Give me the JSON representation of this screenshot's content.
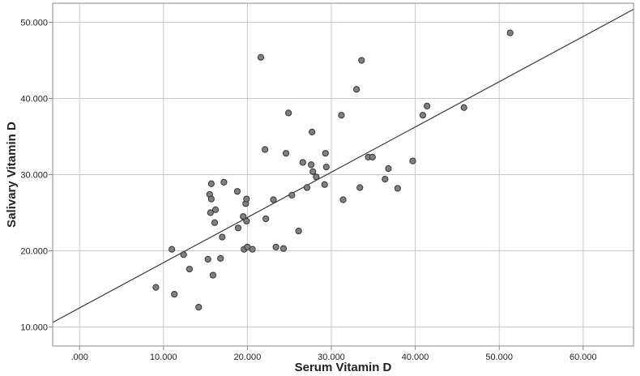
{
  "chart_data": {
    "type": "scatter",
    "title": "",
    "xlabel": "Serum Vitamin D",
    "ylabel": "Salivary Vitamin D",
    "xlim": [
      -3.2,
      66.0
    ],
    "ylim": [
      7.5,
      52.5
    ],
    "x_ticks": [
      {
        "value": 0,
        "label": ".000"
      },
      {
        "value": 10,
        "label": "10.000"
      },
      {
        "value": 20,
        "label": "20.000"
      },
      {
        "value": 30,
        "label": "30.000"
      },
      {
        "value": 40,
        "label": "40.000"
      },
      {
        "value": 50,
        "label": "50.000"
      },
      {
        "value": 60,
        "label": "60.000"
      }
    ],
    "y_ticks": [
      {
        "value": 10,
        "label": "10.000"
      },
      {
        "value": 20,
        "label": "20.000"
      },
      {
        "value": 30,
        "label": "30.000"
      },
      {
        "value": 40,
        "label": "40.000"
      },
      {
        "value": 50,
        "label": "50.000"
      }
    ],
    "grid": true,
    "colors": {
      "marker_fill": "#808080",
      "marker_stroke": "#333333",
      "grid": "#c8c8c8",
      "fit_line": "#3a3a3a",
      "frame": "#8a8a8a"
    },
    "fit_line": [
      [
        -3.2,
        10.6
      ],
      [
        66.0,
        51.7
      ]
    ],
    "points": [
      [
        9.1,
        15.2
      ],
      [
        11.0,
        20.2
      ],
      [
        11.3,
        14.3
      ],
      [
        12.4,
        19.5
      ],
      [
        13.1,
        17.6
      ],
      [
        14.2,
        12.6
      ],
      [
        15.3,
        18.9
      ],
      [
        15.5,
        27.4
      ],
      [
        15.6,
        25.0
      ],
      [
        15.7,
        28.8
      ],
      [
        15.7,
        26.8
      ],
      [
        15.9,
        16.8
      ],
      [
        16.1,
        23.7
      ],
      [
        16.2,
        25.4
      ],
      [
        16.8,
        19.0
      ],
      [
        17.0,
        21.8
      ],
      [
        17.2,
        29.0
      ],
      [
        18.8,
        27.8
      ],
      [
        18.9,
        23.0
      ],
      [
        19.5,
        24.5
      ],
      [
        19.6,
        20.2
      ],
      [
        19.8,
        26.2
      ],
      [
        19.9,
        26.8
      ],
      [
        19.9,
        23.9
      ],
      [
        20.0,
        20.5
      ],
      [
        20.6,
        20.2
      ],
      [
        21.6,
        45.4
      ],
      [
        22.1,
        33.3
      ],
      [
        22.2,
        24.2
      ],
      [
        23.1,
        26.7
      ],
      [
        23.4,
        20.5
      ],
      [
        24.3,
        20.3
      ],
      [
        24.6,
        32.8
      ],
      [
        24.9,
        38.1
      ],
      [
        25.3,
        27.3
      ],
      [
        26.1,
        22.6
      ],
      [
        26.6,
        31.6
      ],
      [
        27.1,
        28.3
      ],
      [
        27.6,
        31.3
      ],
      [
        27.7,
        35.6
      ],
      [
        27.8,
        30.4
      ],
      [
        28.2,
        29.7
      ],
      [
        29.2,
        28.7
      ],
      [
        29.3,
        32.8
      ],
      [
        29.4,
        31.0
      ],
      [
        31.2,
        37.8
      ],
      [
        31.4,
        26.7
      ],
      [
        33.0,
        41.2
      ],
      [
        33.4,
        28.3
      ],
      [
        33.6,
        45.0
      ],
      [
        34.4,
        32.3
      ],
      [
        34.9,
        32.3
      ],
      [
        36.4,
        29.4
      ],
      [
        36.8,
        30.8
      ],
      [
        37.9,
        28.2
      ],
      [
        39.7,
        31.8
      ],
      [
        40.9,
        37.8
      ],
      [
        41.4,
        39.0
      ],
      [
        45.8,
        38.8
      ],
      [
        51.3,
        48.6
      ]
    ]
  }
}
